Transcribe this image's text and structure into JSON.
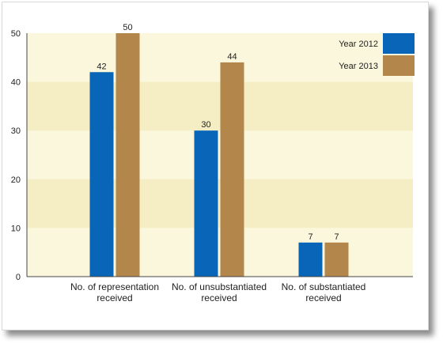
{
  "chart_data": {
    "type": "bar",
    "categories": [
      [
        "No. of representation",
        "received"
      ],
      [
        "No. of unsubstantiated",
        "received"
      ],
      [
        "No. of substantiated",
        "received"
      ]
    ],
    "series": [
      {
        "name": "Year 2012",
        "values": [
          42,
          30,
          7
        ],
        "color": "#0865b7"
      },
      {
        "name": "Year 2013",
        "values": [
          50,
          44,
          7
        ],
        "color": "#b3864c"
      }
    ],
    "yticks": [
      0,
      10,
      20,
      30,
      40,
      50
    ],
    "ylim": [
      0,
      50
    ],
    "title": "",
    "xlabel": "",
    "ylabel": "",
    "legend": "top-right",
    "grid": true,
    "colors": {
      "plot_background": "#fbf7dc",
      "band_alt": "#f5eec5",
      "axis": "#444444"
    }
  }
}
